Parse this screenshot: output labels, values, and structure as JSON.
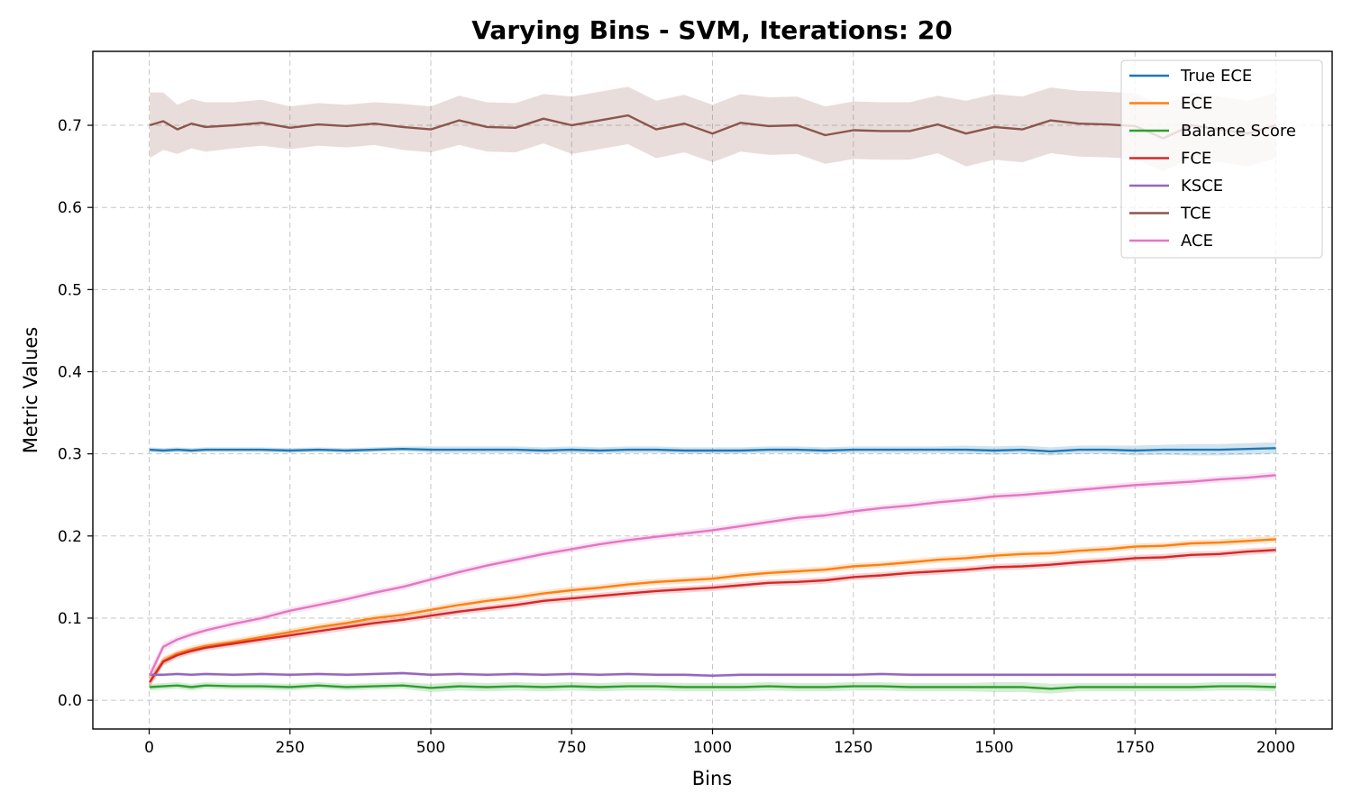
{
  "chart_data": {
    "type": "line",
    "title": "Varying Bins - SVM, Iterations: 20",
    "xlabel": "Bins",
    "ylabel": "Metric Values",
    "xlim": [
      -100,
      2100
    ],
    "ylim": [
      -0.035,
      0.79
    ],
    "xticks": [
      0,
      250,
      500,
      750,
      1000,
      1250,
      1500,
      1750,
      2000
    ],
    "yticks": [
      0.0,
      0.1,
      0.2,
      0.3,
      0.4,
      0.5,
      0.6,
      0.7
    ],
    "ytick_labels": [
      "0.0",
      "0.1",
      "0.2",
      "0.3",
      "0.4",
      "0.5",
      "0.6",
      "0.7"
    ],
    "grid": true,
    "legend_position": "top-right",
    "x": [
      1,
      25,
      50,
      75,
      100,
      150,
      200,
      250,
      300,
      350,
      400,
      450,
      500,
      550,
      600,
      650,
      700,
      750,
      800,
      850,
      900,
      950,
      1000,
      1050,
      1100,
      1150,
      1200,
      1250,
      1300,
      1350,
      1400,
      1450,
      1500,
      1550,
      1600,
      1650,
      1700,
      1750,
      1800,
      1850,
      1900,
      1950,
      2000
    ],
    "series": [
      {
        "name": "True ECE",
        "color": "#1f77b4",
        "values": [
          0.305,
          0.304,
          0.305,
          0.304,
          0.305,
          0.305,
          0.305,
          0.304,
          0.305,
          0.304,
          0.305,
          0.306,
          0.305,
          0.305,
          0.305,
          0.305,
          0.304,
          0.305,
          0.304,
          0.305,
          0.305,
          0.304,
          0.304,
          0.304,
          0.305,
          0.305,
          0.304,
          0.305,
          0.305,
          0.305,
          0.305,
          0.305,
          0.304,
          0.305,
          0.303,
          0.305,
          0.305,
          0.304,
          0.305,
          0.305,
          0.305,
          0.306,
          0.307
        ],
        "band": [
          0.003,
          0.003,
          0.003,
          0.003,
          0.003,
          0.003,
          0.003,
          0.003,
          0.003,
          0.003,
          0.003,
          0.003,
          0.004,
          0.004,
          0.004,
          0.004,
          0.004,
          0.004,
          0.004,
          0.004,
          0.004,
          0.004,
          0.004,
          0.004,
          0.004,
          0.004,
          0.004,
          0.004,
          0.004,
          0.004,
          0.004,
          0.005,
          0.005,
          0.005,
          0.005,
          0.005,
          0.005,
          0.006,
          0.006,
          0.007,
          0.007,
          0.007,
          0.007
        ]
      },
      {
        "name": "ECE",
        "color": "#ff7f0e",
        "values": [
          0.022,
          0.048,
          0.057,
          0.062,
          0.066,
          0.071,
          0.077,
          0.083,
          0.089,
          0.094,
          0.1,
          0.104,
          0.11,
          0.116,
          0.121,
          0.125,
          0.13,
          0.134,
          0.137,
          0.141,
          0.144,
          0.146,
          0.148,
          0.152,
          0.155,
          0.157,
          0.159,
          0.163,
          0.165,
          0.168,
          0.171,
          0.173,
          0.176,
          0.178,
          0.179,
          0.182,
          0.184,
          0.187,
          0.188,
          0.191,
          0.192,
          0.194,
          0.196
        ],
        "band": [
          0.006,
          0.005,
          0.004,
          0.004,
          0.004,
          0.004,
          0.004,
          0.004,
          0.004,
          0.004,
          0.004,
          0.004,
          0.004,
          0.004,
          0.004,
          0.004,
          0.004,
          0.004,
          0.004,
          0.004,
          0.004,
          0.004,
          0.004,
          0.004,
          0.004,
          0.004,
          0.004,
          0.004,
          0.004,
          0.004,
          0.004,
          0.004,
          0.004,
          0.004,
          0.004,
          0.004,
          0.004,
          0.004,
          0.004,
          0.004,
          0.004,
          0.004,
          0.004
        ]
      },
      {
        "name": "Balance Score",
        "color": "#2ca02c",
        "values": [
          0.016,
          0.017,
          0.018,
          0.016,
          0.018,
          0.017,
          0.017,
          0.016,
          0.018,
          0.016,
          0.017,
          0.018,
          0.015,
          0.017,
          0.016,
          0.017,
          0.016,
          0.017,
          0.016,
          0.017,
          0.017,
          0.016,
          0.016,
          0.016,
          0.017,
          0.016,
          0.016,
          0.017,
          0.017,
          0.016,
          0.016,
          0.016,
          0.016,
          0.016,
          0.014,
          0.016,
          0.016,
          0.016,
          0.016,
          0.016,
          0.017,
          0.017,
          0.016
        ],
        "band": [
          0.004,
          0.004,
          0.004,
          0.004,
          0.004,
          0.004,
          0.004,
          0.004,
          0.004,
          0.004,
          0.004,
          0.004,
          0.005,
          0.005,
          0.005,
          0.005,
          0.005,
          0.005,
          0.005,
          0.005,
          0.005,
          0.005,
          0.005,
          0.005,
          0.005,
          0.005,
          0.005,
          0.005,
          0.005,
          0.005,
          0.005,
          0.005,
          0.006,
          0.006,
          0.006,
          0.005,
          0.005,
          0.005,
          0.005,
          0.005,
          0.005,
          0.005,
          0.005
        ]
      },
      {
        "name": "FCE",
        "color": "#d62728",
        "values": [
          0.022,
          0.047,
          0.055,
          0.06,
          0.064,
          0.069,
          0.074,
          0.079,
          0.084,
          0.089,
          0.094,
          0.098,
          0.103,
          0.108,
          0.112,
          0.116,
          0.121,
          0.124,
          0.127,
          0.13,
          0.133,
          0.135,
          0.137,
          0.14,
          0.143,
          0.144,
          0.146,
          0.15,
          0.152,
          0.155,
          0.157,
          0.159,
          0.162,
          0.163,
          0.165,
          0.168,
          0.17,
          0.173,
          0.174,
          0.177,
          0.178,
          0.181,
          0.183
        ],
        "band": [
          0.006,
          0.005,
          0.004,
          0.004,
          0.004,
          0.004,
          0.004,
          0.004,
          0.004,
          0.004,
          0.004,
          0.004,
          0.004,
          0.004,
          0.004,
          0.004,
          0.004,
          0.004,
          0.004,
          0.004,
          0.004,
          0.004,
          0.004,
          0.004,
          0.004,
          0.004,
          0.004,
          0.004,
          0.004,
          0.004,
          0.004,
          0.004,
          0.004,
          0.004,
          0.004,
          0.004,
          0.004,
          0.004,
          0.004,
          0.004,
          0.004,
          0.004,
          0.004
        ]
      },
      {
        "name": "KSCE",
        "color": "#9467bd",
        "values": [
          0.031,
          0.031,
          0.032,
          0.031,
          0.032,
          0.031,
          0.032,
          0.031,
          0.032,
          0.031,
          0.032,
          0.033,
          0.031,
          0.032,
          0.031,
          0.032,
          0.031,
          0.032,
          0.031,
          0.032,
          0.031,
          0.031,
          0.03,
          0.031,
          0.031,
          0.031,
          0.031,
          0.031,
          0.032,
          0.031,
          0.031,
          0.031,
          0.031,
          0.031,
          0.031,
          0.031,
          0.031,
          0.031,
          0.031,
          0.031,
          0.031,
          0.031,
          0.031
        ],
        "band": [
          0.002,
          0.002,
          0.002,
          0.002,
          0.002,
          0.002,
          0.002,
          0.002,
          0.002,
          0.002,
          0.002,
          0.002,
          0.002,
          0.002,
          0.002,
          0.002,
          0.002,
          0.002,
          0.002,
          0.002,
          0.002,
          0.002,
          0.002,
          0.002,
          0.002,
          0.002,
          0.002,
          0.002,
          0.002,
          0.002,
          0.002,
          0.002,
          0.002,
          0.002,
          0.002,
          0.002,
          0.002,
          0.002,
          0.002,
          0.002,
          0.002,
          0.002,
          0.002
        ]
      },
      {
        "name": "TCE",
        "color": "#8c564b",
        "values": [
          0.7,
          0.705,
          0.695,
          0.702,
          0.698,
          0.7,
          0.703,
          0.697,
          0.701,
          0.699,
          0.702,
          0.698,
          0.695,
          0.706,
          0.698,
          0.697,
          0.708,
          0.7,
          0.706,
          0.712,
          0.695,
          0.702,
          0.69,
          0.703,
          0.699,
          0.7,
          0.688,
          0.694,
          0.693,
          0.693,
          0.701,
          0.69,
          0.698,
          0.695,
          0.706,
          0.702,
          0.701,
          0.699,
          0.684,
          0.7,
          0.695,
          0.69,
          0.7
        ],
        "band": [
          0.04,
          0.035,
          0.03,
          0.03,
          0.03,
          0.028,
          0.028,
          0.026,
          0.026,
          0.026,
          0.026,
          0.028,
          0.028,
          0.03,
          0.03,
          0.03,
          0.03,
          0.035,
          0.035,
          0.035,
          0.035,
          0.035,
          0.035,
          0.035,
          0.035,
          0.035,
          0.035,
          0.035,
          0.035,
          0.035,
          0.035,
          0.04,
          0.04,
          0.04,
          0.04,
          0.04,
          0.04,
          0.04,
          0.04,
          0.04,
          0.04,
          0.04,
          0.04
        ]
      },
      {
        "name": "ACE",
        "color": "#e377c2",
        "values": [
          0.03,
          0.065,
          0.074,
          0.08,
          0.085,
          0.093,
          0.1,
          0.109,
          0.116,
          0.123,
          0.131,
          0.138,
          0.147,
          0.156,
          0.164,
          0.171,
          0.178,
          0.184,
          0.19,
          0.195,
          0.199,
          0.203,
          0.207,
          0.212,
          0.217,
          0.222,
          0.225,
          0.23,
          0.234,
          0.237,
          0.241,
          0.244,
          0.248,
          0.25,
          0.253,
          0.256,
          0.259,
          0.262,
          0.264,
          0.266,
          0.269,
          0.271,
          0.274
        ],
        "band": [
          0.008,
          0.005,
          0.004,
          0.004,
          0.004,
          0.004,
          0.004,
          0.004,
          0.004,
          0.004,
          0.004,
          0.004,
          0.004,
          0.004,
          0.004,
          0.004,
          0.004,
          0.004,
          0.004,
          0.004,
          0.004,
          0.004,
          0.004,
          0.004,
          0.004,
          0.004,
          0.004,
          0.004,
          0.004,
          0.004,
          0.004,
          0.004,
          0.004,
          0.004,
          0.004,
          0.004,
          0.004,
          0.004,
          0.004,
          0.004,
          0.004,
          0.004,
          0.004
        ]
      }
    ]
  }
}
